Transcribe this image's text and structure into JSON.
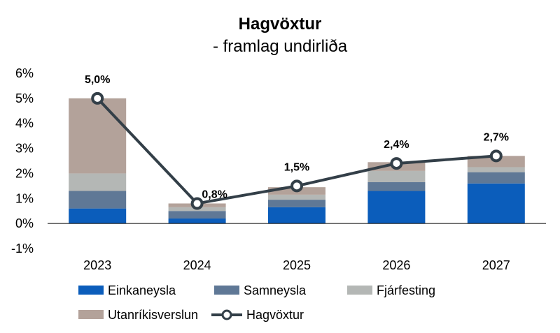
{
  "chart_data": {
    "type": "bar",
    "stacked": true,
    "title": "Hagvöxtur",
    "subtitle": "- framlag undirliða",
    "categories": [
      "2023",
      "2024",
      "2025",
      "2026",
      "2027"
    ],
    "ylim": [
      -1,
      6
    ],
    "yticks": [
      -1,
      0,
      1,
      2,
      3,
      4,
      5,
      6
    ],
    "ytick_labels": [
      "-1%",
      "0%",
      "1%",
      "2%",
      "3%",
      "4%",
      "5%",
      "6%"
    ],
    "grid": false,
    "legend_position": "bottom",
    "series": [
      {
        "name": "Einkaneysla",
        "color": "#0B5DBB",
        "values": [
          0.6,
          0.2,
          0.65,
          1.3,
          1.6
        ]
      },
      {
        "name": "Samneysla",
        "color": "#5F7896",
        "values": [
          0.7,
          0.3,
          0.3,
          0.35,
          0.45
        ]
      },
      {
        "name": "Fjárfesting",
        "color": "#B4B7B5",
        "values": [
          0.7,
          0.15,
          0.2,
          0.45,
          0.2
        ]
      },
      {
        "name": "Utanríkisverslun",
        "color": "#B3A29A",
        "values": [
          3.0,
          0.15,
          0.3,
          0.35,
          0.45
        ]
      }
    ],
    "line": {
      "name": "Hagvöxtur",
      "color": "#333F48",
      "values": [
        5.0,
        0.8,
        1.5,
        2.4,
        2.7
      ],
      "labels": [
        "5,0%",
        "0,8%",
        "1,5%",
        "2,4%",
        "2,7%"
      ]
    }
  }
}
